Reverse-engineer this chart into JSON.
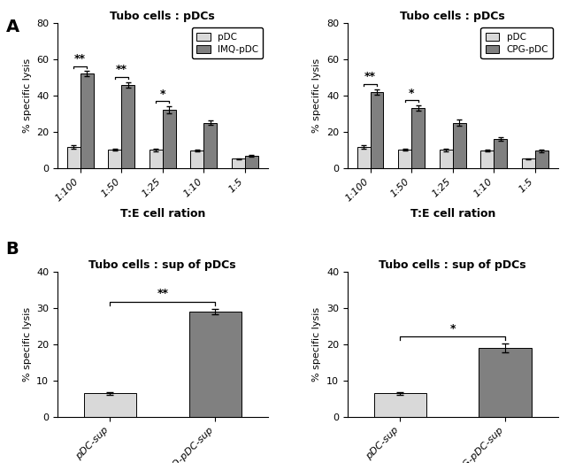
{
  "panel_A_left": {
    "title": "Tubo cells : pDCs",
    "xlabel": "T:E cell ration",
    "ylabel": "% specific lysis",
    "categories": [
      "1:100",
      "1:50",
      "1:25",
      "1:10",
      "1:5"
    ],
    "pDC_values": [
      11.5,
      10,
      10,
      9.5,
      5
    ],
    "pDC_errors": [
      0.8,
      0.6,
      0.7,
      0.5,
      0.4
    ],
    "treated_values": [
      52,
      46,
      32,
      25,
      6.5
    ],
    "treated_errors": [
      1.5,
      1.5,
      2.0,
      1.0,
      0.5
    ],
    "treated_label": "IMQ-pDC",
    "ylim": [
      0,
      80
    ],
    "yticks": [
      0,
      20,
      40,
      60,
      80
    ],
    "sig_pairs": [
      [
        0,
        "**"
      ],
      [
        1,
        "**"
      ],
      [
        2,
        "*"
      ]
    ],
    "color_light": "#d9d9d9",
    "color_dark": "#808080"
  },
  "panel_A_right": {
    "title": "Tubo cells : pDCs",
    "xlabel": "T:E cell ration",
    "ylabel": "% specific lysis",
    "categories": [
      "1:100",
      "1:50",
      "1:25",
      "1:10",
      "1:5"
    ],
    "pDC_values": [
      11.5,
      10,
      10,
      9.5,
      5
    ],
    "pDC_errors": [
      0.8,
      0.6,
      0.7,
      0.5,
      0.4
    ],
    "treated_values": [
      42,
      33,
      25,
      16,
      9.5
    ],
    "treated_errors": [
      1.5,
      1.5,
      1.5,
      1.0,
      0.8
    ],
    "treated_label": "CPG-pDC",
    "ylim": [
      0,
      80
    ],
    "yticks": [
      0,
      20,
      40,
      60,
      80
    ],
    "sig_pairs": [
      [
        0,
        "**"
      ],
      [
        1,
        "*"
      ]
    ],
    "color_light": "#d9d9d9",
    "color_dark": "#808080"
  },
  "panel_B_left": {
    "title": "Tubo cells : sup of pDCs",
    "ylabel": "% specific lysis",
    "categories": [
      "pDC-sup",
      "IMQ-pDC-sup"
    ],
    "values": [
      6.5,
      29
    ],
    "errors": [
      0.4,
      0.8
    ],
    "sig": "**",
    "ylim": [
      0,
      40
    ],
    "yticks": [
      0,
      10,
      20,
      30,
      40
    ],
    "color_light": "#d9d9d9",
    "color_dark": "#808080"
  },
  "panel_B_right": {
    "title": "Tubo cells : sup of pDCs",
    "ylabel": "% specific lysis",
    "categories": [
      "pDC-sup",
      "CPG-pDC-sup"
    ],
    "values": [
      6.5,
      19.0
    ],
    "errors": [
      0.4,
      1.2
    ],
    "sig": "*",
    "ylim": [
      0,
      40
    ],
    "yticks": [
      0,
      10,
      20,
      30,
      40
    ],
    "color_light": "#d9d9d9",
    "color_dark": "#808080"
  },
  "bg_color": "#ffffff",
  "label_A": "A",
  "label_B": "B"
}
